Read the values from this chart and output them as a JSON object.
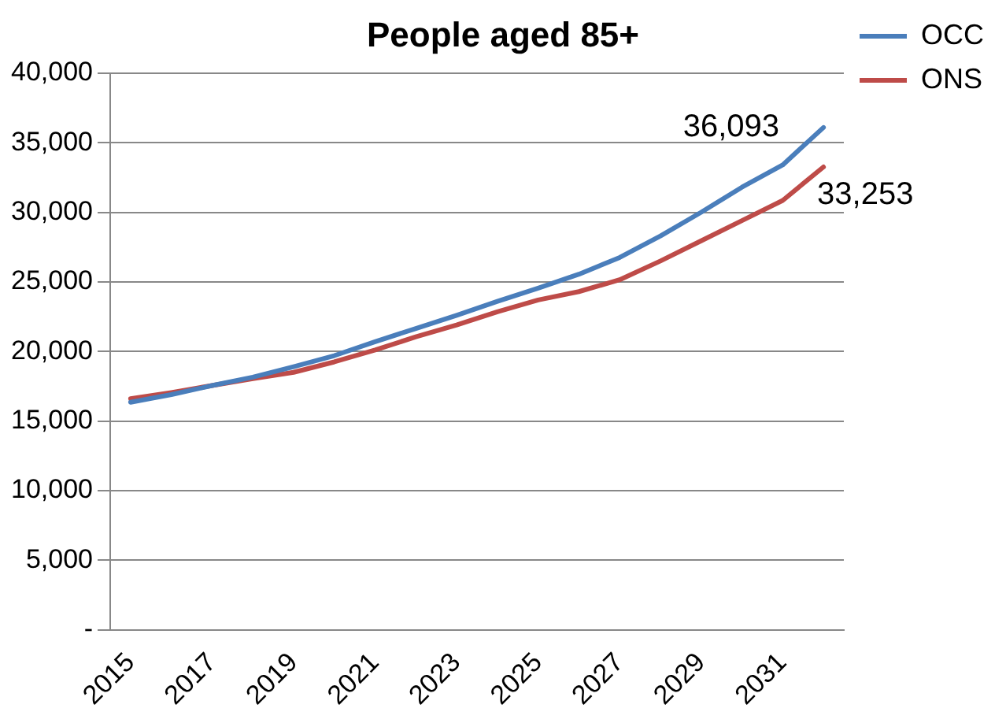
{
  "chart_data": {
    "type": "line",
    "title": "People aged 85+",
    "categories": [
      "2015",
      null,
      "2017",
      null,
      "2019",
      null,
      "2021",
      null,
      "2023",
      null,
      "2025",
      null,
      "2027",
      null,
      "2029",
      null,
      "2031",
      null
    ],
    "series": [
      {
        "name": "OCC",
        "color": "#4a7ebb",
        "values": [
          16350,
          16900,
          17550,
          18150,
          18900,
          19700,
          20700,
          21650,
          22600,
          23600,
          24550,
          25550,
          26750,
          28300,
          30000,
          31800,
          33400,
          36093
        ],
        "value_labels": [
          null,
          null,
          null,
          null,
          null,
          null,
          null,
          null,
          null,
          null,
          null,
          null,
          null,
          null,
          null,
          null,
          null,
          "36,093"
        ]
      },
      {
        "name": "ONS",
        "color": "#be4b48",
        "values": [
          16600,
          17050,
          17550,
          18050,
          18500,
          19250,
          20100,
          21050,
          21900,
          22850,
          23700,
          24300,
          25150,
          26500,
          27950,
          29400,
          30850,
          33253
        ],
        "value_labels": [
          null,
          null,
          null,
          null,
          null,
          null,
          null,
          null,
          null,
          null,
          null,
          null,
          null,
          null,
          null,
          null,
          null,
          "33,253"
        ]
      }
    ],
    "ylim": [
      0,
      40000
    ],
    "yticks": [
      {
        "value": 0,
        "label": "-"
      },
      {
        "value": 5000,
        "label": "5,000"
      },
      {
        "value": 10000,
        "label": "10,000"
      },
      {
        "value": 15000,
        "label": "15,000"
      },
      {
        "value": 20000,
        "label": "20,000"
      },
      {
        "value": 25000,
        "label": "25,000"
      },
      {
        "value": 30000,
        "label": "30,000"
      },
      {
        "value": 35000,
        "label": "35,000"
      },
      {
        "value": 40000,
        "label": "40,000"
      }
    ],
    "grid": "y",
    "legend": "top right",
    "marker": "none",
    "line_style": "solid"
  }
}
